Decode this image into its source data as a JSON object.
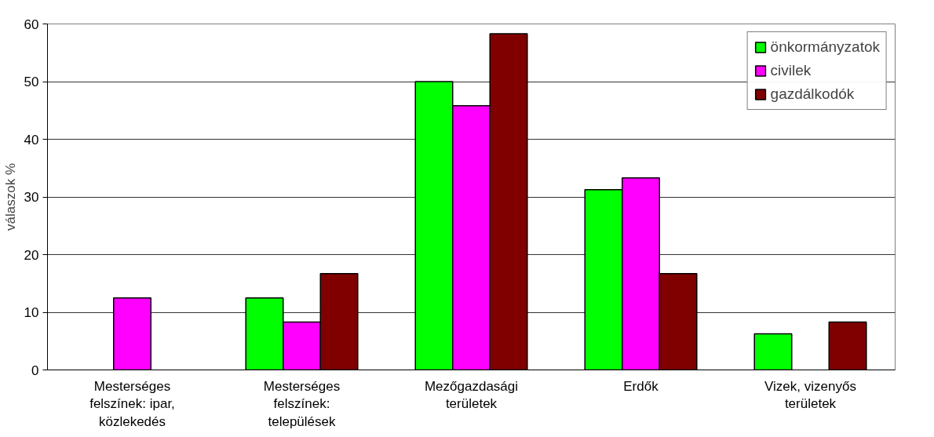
{
  "chart_data": {
    "type": "bar",
    "ylabel": "válaszok %",
    "categories": [
      "Mesterséges felszínek: ipar, közlekedés",
      "Mesterséges felszínek: települések",
      "Mezőgazdasági területek",
      "Erdők",
      "Vizek, vizenyős területek"
    ],
    "series": [
      {
        "name": "önkormányzatok",
        "color": "#00ff00",
        "values": [
          null,
          12.5,
          50,
          31.25,
          6.25
        ]
      },
      {
        "name": "civilek",
        "color": "#ff00ff",
        "values": [
          12.5,
          8.3,
          45.8,
          33.3,
          null
        ]
      },
      {
        "name": "gazdálkodók",
        "color": "#800000",
        "values": [
          null,
          16.7,
          58.3,
          16.7,
          8.3
        ]
      }
    ],
    "ylim": [
      0,
      60
    ],
    "yticks": [
      0,
      10,
      20,
      30,
      40,
      50,
      60
    ],
    "grid": "y",
    "legend": "top right"
  }
}
